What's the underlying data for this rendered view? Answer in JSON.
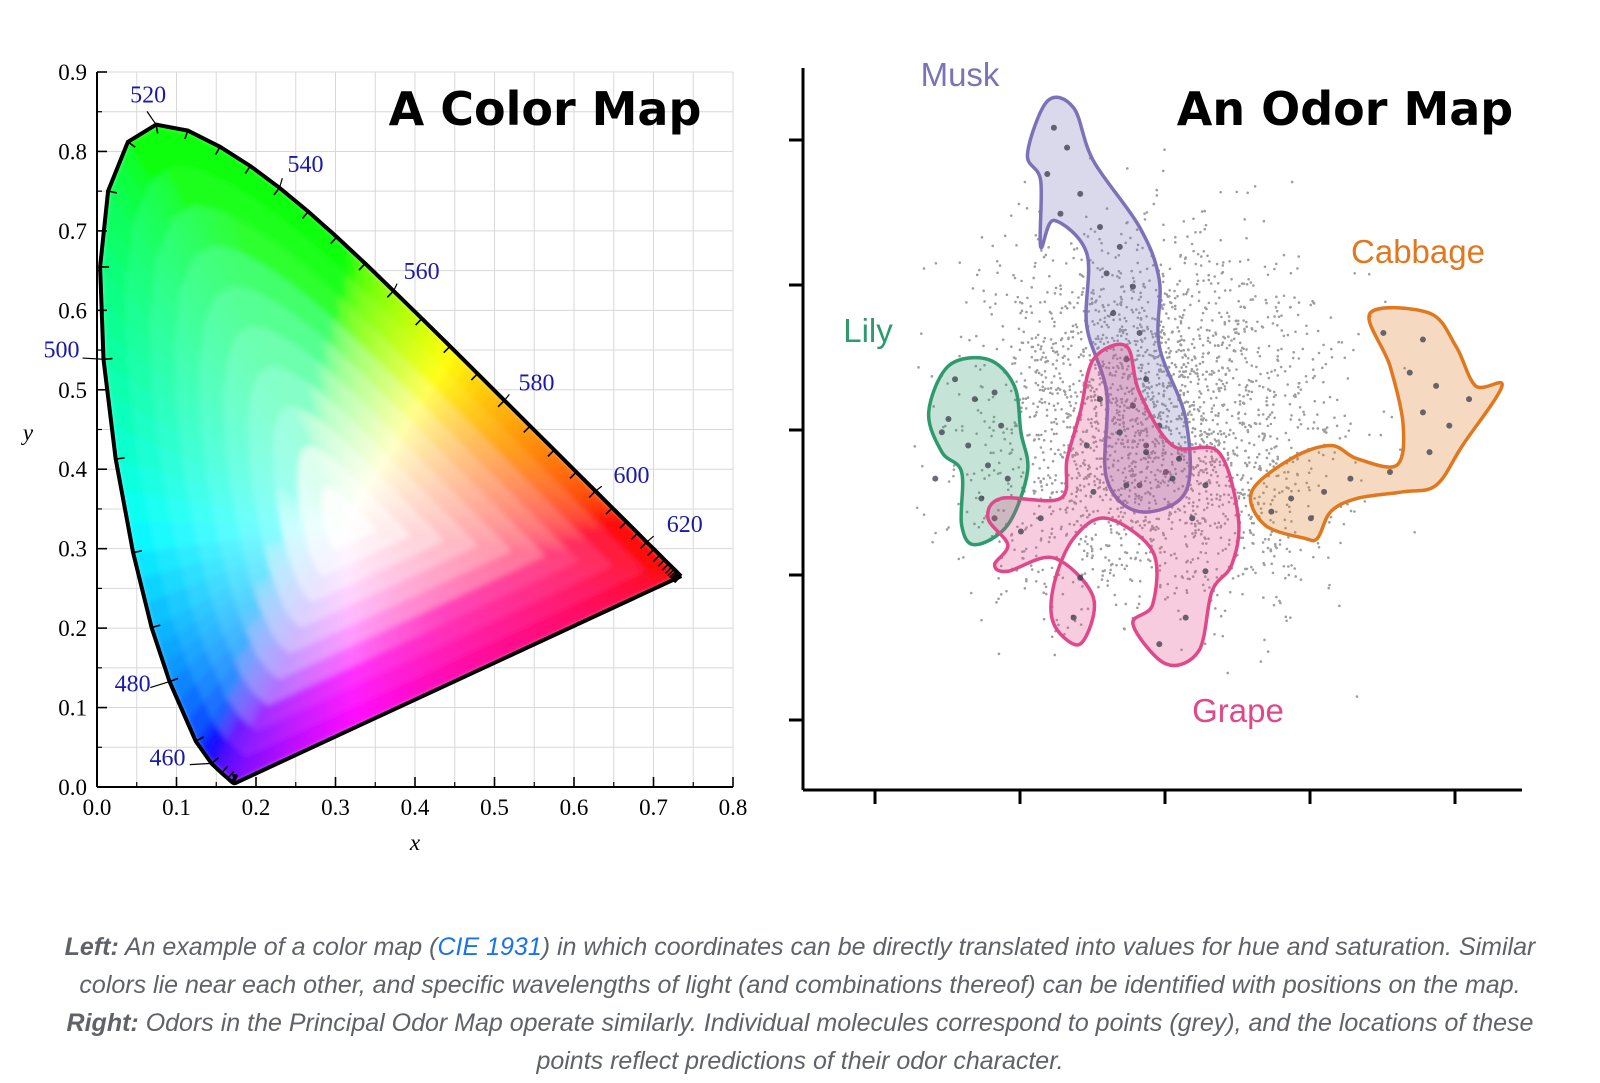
{
  "chart_data": [
    {
      "type": "scatter",
      "title": "A Color Map",
      "xlabel": "x",
      "ylabel": "y",
      "xlim": [
        0.0,
        0.8
      ],
      "ylim": [
        0.0,
        0.9
      ],
      "x_ticks": [
        "0.0",
        "0.1",
        "0.2",
        "0.3",
        "0.4",
        "0.5",
        "0.6",
        "0.7",
        "0.8"
      ],
      "y_ticks": [
        "0.0",
        "0.1",
        "0.2",
        "0.3",
        "0.4",
        "0.5",
        "0.6",
        "0.7",
        "0.8",
        "0.9"
      ],
      "grid": true,
      "white_point": [
        0.3127,
        0.329
      ],
      "spectral_locus": [
        [
          0.1741,
          0.005
        ],
        [
          0.1738,
          0.0049
        ],
        [
          0.1733,
          0.0048
        ],
        [
          0.1726,
          0.0048
        ],
        [
          0.1714,
          0.0051
        ],
        [
          0.1689,
          0.0069
        ],
        [
          0.1644,
          0.0109
        ],
        [
          0.1566,
          0.0177
        ],
        [
          0.144,
          0.0297
        ],
        [
          0.1241,
          0.0578
        ],
        [
          0.0913,
          0.1327
        ],
        [
          0.0687,
          0.2007
        ],
        [
          0.0454,
          0.295
        ],
        [
          0.0235,
          0.4127
        ],
        [
          0.0082,
          0.5384
        ],
        [
          0.0039,
          0.6548
        ],
        [
          0.0139,
          0.7502
        ],
        [
          0.0389,
          0.812
        ],
        [
          0.0743,
          0.8338
        ],
        [
          0.1142,
          0.8262
        ],
        [
          0.1547,
          0.8059
        ],
        [
          0.1929,
          0.7816
        ],
        [
          0.2296,
          0.7543
        ],
        [
          0.2658,
          0.7243
        ],
        [
          0.3016,
          0.6923
        ],
        [
          0.3373,
          0.6589
        ],
        [
          0.3731,
          0.6245
        ],
        [
          0.4087,
          0.5896
        ],
        [
          0.4441,
          0.5547
        ],
        [
          0.4788,
          0.5202
        ],
        [
          0.5125,
          0.4866
        ],
        [
          0.5448,
          0.4544
        ],
        [
          0.5752,
          0.4242
        ],
        [
          0.6029,
          0.3965
        ],
        [
          0.627,
          0.3725
        ],
        [
          0.6482,
          0.3514
        ],
        [
          0.6658,
          0.334
        ],
        [
          0.6801,
          0.3197
        ],
        [
          0.6915,
          0.3083
        ],
        [
          0.7006,
          0.2993
        ],
        [
          0.7079,
          0.292
        ],
        [
          0.714,
          0.2859
        ],
        [
          0.719,
          0.2809
        ],
        [
          0.723,
          0.277
        ],
        [
          0.726,
          0.274
        ],
        [
          0.7283,
          0.2717
        ],
        [
          0.73,
          0.27
        ],
        [
          0.7311,
          0.2689
        ],
        [
          0.732,
          0.268
        ],
        [
          0.7327,
          0.2673
        ],
        [
          0.7334,
          0.2666
        ],
        [
          0.734,
          0.266
        ],
        [
          0.7344,
          0.2656
        ],
        [
          0.7346,
          0.2654
        ],
        [
          0.7347,
          0.2653
        ]
      ],
      "wavelength_labels": [
        {
          "label": "460",
          "x": 0.144,
          "y": 0.0297
        },
        {
          "label": "480",
          "x": 0.0913,
          "y": 0.1327
        },
        {
          "label": "500",
          "x": 0.0082,
          "y": 0.5384
        },
        {
          "label": "520",
          "x": 0.0743,
          "y": 0.8338
        },
        {
          "label": "540",
          "x": 0.2296,
          "y": 0.7543
        },
        {
          "label": "560",
          "x": 0.3731,
          "y": 0.6245
        },
        {
          "label": "580",
          "x": 0.5125,
          "y": 0.4866
        },
        {
          "label": "600",
          "x": 0.627,
          "y": 0.3725
        },
        {
          "label": "620",
          "x": 0.6915,
          "y": 0.3083
        }
      ]
    },
    {
      "type": "scatter",
      "title": "An Odor Map",
      "xlim": [
        0,
        10
      ],
      "ylim": [
        0,
        10
      ],
      "x_tick_count": 5,
      "y_tick_count": 5,
      "background_points": "grey",
      "regions": [
        {
          "name": "Musk",
          "color": "#7b72b8",
          "outline": [
            [
              3.1,
              9.8
            ],
            [
              3.5,
              9.7
            ],
            [
              3.8,
              8.9
            ],
            [
              4.5,
              7.9
            ],
            [
              4.8,
              7.1
            ],
            [
              4.8,
              6.1
            ],
            [
              5.2,
              5.0
            ],
            [
              5.2,
              3.9
            ],
            [
              4.5,
              3.6
            ],
            [
              4.0,
              4.1
            ],
            [
              4.0,
              5.4
            ],
            [
              3.7,
              6.4
            ],
            [
              3.7,
              7.5
            ],
            [
              3.2,
              8.0
            ],
            [
              3.0,
              7.6
            ],
            [
              3.0,
              8.6
            ],
            [
              2.8,
              9.0
            ]
          ],
          "points": [
            [
              3.2,
              9.4
            ],
            [
              3.4,
              9.1
            ],
            [
              3.1,
              8.7
            ],
            [
              3.6,
              8.4
            ],
            [
              3.3,
              8.1
            ],
            [
              3.9,
              7.9
            ],
            [
              4.2,
              7.6
            ],
            [
              4.0,
              7.2
            ],
            [
              4.4,
              7.0
            ],
            [
              4.1,
              6.6
            ],
            [
              4.5,
              6.3
            ],
            [
              4.3,
              5.9
            ],
            [
              4.6,
              5.6
            ],
            [
              4.4,
              5.2
            ],
            [
              4.8,
              4.9
            ],
            [
              4.6,
              4.6
            ],
            [
              4.9,
              4.2
            ],
            [
              4.5,
              4.0
            ]
          ]
        },
        {
          "name": "Lily",
          "color": "#2e9a6e",
          "outline": [
            [
              1.6,
              5.8
            ],
            [
              2.2,
              5.9
            ],
            [
              2.6,
              5.5
            ],
            [
              2.7,
              4.8
            ],
            [
              2.8,
              4.2
            ],
            [
              2.5,
              3.4
            ],
            [
              2.0,
              3.1
            ],
            [
              1.8,
              3.4
            ],
            [
              1.8,
              4.2
            ],
            [
              1.5,
              4.5
            ],
            [
              1.3,
              5.1
            ]
          ],
          "points": [
            [
              1.7,
              5.6
            ],
            [
              2.0,
              5.3
            ],
            [
              2.3,
              5.4
            ],
            [
              1.6,
              5.0
            ],
            [
              2.4,
              4.9
            ],
            [
              1.9,
              4.6
            ],
            [
              2.2,
              4.3
            ],
            [
              2.5,
              4.1
            ],
            [
              2.1,
              3.8
            ],
            [
              2.3,
              3.5
            ],
            [
              1.5,
              4.8
            ],
            [
              1.4,
              4.1
            ]
          ]
        },
        {
          "name": "Grape",
          "color": "#e0488a",
          "outline": [
            [
              3.8,
              5.9
            ],
            [
              4.3,
              6.1
            ],
            [
              4.5,
              5.4
            ],
            [
              5.0,
              4.6
            ],
            [
              5.7,
              4.5
            ],
            [
              6.0,
              3.5
            ],
            [
              5.9,
              2.8
            ],
            [
              5.6,
              2.4
            ],
            [
              5.4,
              1.5
            ],
            [
              4.9,
              1.3
            ],
            [
              4.4,
              1.9
            ],
            [
              4.7,
              2.2
            ],
            [
              4.7,
              3.0
            ],
            [
              4.0,
              3.5
            ],
            [
              3.5,
              3.2
            ],
            [
              3.2,
              2.5
            ],
            [
              3.2,
              1.9
            ],
            [
              3.6,
              1.6
            ],
            [
              3.8,
              2.3
            ],
            [
              3.2,
              2.9
            ],
            [
              2.5,
              2.7
            ],
            [
              2.3,
              2.8
            ],
            [
              2.5,
              3.1
            ],
            [
              2.2,
              3.5
            ],
            [
              2.4,
              3.8
            ],
            [
              3.3,
              3.8
            ],
            [
              3.4,
              4.4
            ],
            [
              3.6,
              5.1
            ]
          ],
          "points": [
            [
              3.9,
              5.3
            ],
            [
              4.2,
              4.8
            ],
            [
              4.6,
              4.5
            ],
            [
              5.0,
              4.1
            ],
            [
              5.5,
              4.0
            ],
            [
              5.3,
              3.5
            ],
            [
              4.3,
              4.0
            ],
            [
              3.7,
              4.6
            ],
            [
              3.8,
              3.9
            ],
            [
              5.5,
              2.7
            ],
            [
              5.2,
              2.0
            ],
            [
              4.8,
              1.6
            ],
            [
              3.0,
              3.5
            ],
            [
              2.7,
              3.3
            ],
            [
              3.6,
              2.6
            ],
            [
              3.5,
              2.0
            ],
            [
              5.1,
              4.4
            ]
          ]
        },
        {
          "name": "Cabbage",
          "color": "#e07820",
          "outline": [
            [
              8.0,
              6.6
            ],
            [
              8.9,
              6.6
            ],
            [
              9.3,
              6.1
            ],
            [
              9.6,
              5.5
            ],
            [
              10.0,
              5.5
            ],
            [
              9.4,
              4.6
            ],
            [
              9.0,
              4.0
            ],
            [
              8.5,
              3.9
            ],
            [
              7.8,
              3.8
            ],
            [
              7.4,
              3.6
            ],
            [
              7.2,
              3.2
            ],
            [
              7.0,
              3.2
            ],
            [
              6.4,
              3.4
            ],
            [
              6.2,
              3.9
            ],
            [
              6.8,
              4.4
            ],
            [
              7.4,
              4.6
            ],
            [
              7.8,
              4.4
            ],
            [
              8.4,
              4.3
            ],
            [
              8.5,
              4.9
            ],
            [
              8.3,
              5.8
            ]
          ],
          "points": [
            [
              8.2,
              6.3
            ],
            [
              8.8,
              6.2
            ],
            [
              8.6,
              5.7
            ],
            [
              9.0,
              5.5
            ],
            [
              8.8,
              5.1
            ],
            [
              9.2,
              4.9
            ],
            [
              8.9,
              4.5
            ],
            [
              8.3,
              4.2
            ],
            [
              7.7,
              4.1
            ],
            [
              7.3,
              3.9
            ],
            [
              6.8,
              3.8
            ],
            [
              6.5,
              3.6
            ],
            [
              7.1,
              3.5
            ],
            [
              9.5,
              5.3
            ]
          ]
        }
      ]
    }
  ],
  "caption": {
    "left_label": "Left:",
    "left_text_1": " An example of a color map (",
    "link_text": "CIE 1931",
    "left_text_2": ") in which coordinates can be directly translated into values for hue and saturation. Similar colors lie near each other, and specific wavelengths of light (and combinations thereof) can be identified with positions on the map. ",
    "right_label": "Right:",
    "right_text": " Odors in the Principal Odor Map operate similarly. Individual molecules correspond to points (grey), and the locations of these points reflect predictions of their odor character."
  },
  "colors": {
    "grid": "#d8d8d8",
    "wavelength_label": "#1a1aa8",
    "background_point": "#9e9e9e",
    "caption_text": "#5f6368",
    "caption_link": "#1a73e8"
  }
}
